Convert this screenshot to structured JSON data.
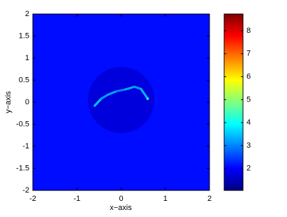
{
  "chart_data": {
    "type": "heatmap",
    "x_label": "x−axis",
    "y_label": "y−axis",
    "xlim": [
      -2,
      2
    ],
    "ylim": [
      -2,
      2
    ],
    "xticks": [
      -2,
      -1,
      0,
      1,
      2
    ],
    "yticks": [
      -2,
      -1.5,
      -1,
      -0.5,
      0,
      0.5,
      1,
      1.5,
      2
    ],
    "colormap": "jet",
    "clim": [
      1.05,
      8.73
    ],
    "cticks": [
      2,
      3,
      4,
      5,
      6,
      7,
      8
    ],
    "background_value": 2.1,
    "inner_region": {
      "center": [
        0,
        0.05
      ],
      "radius": 0.75,
      "value": 1.75
    },
    "curve": {
      "x": [
        -0.6,
        -0.45,
        -0.3,
        -0.1,
        0.1,
        0.3,
        0.45,
        0.6
      ],
      "y": [
        -0.08,
        0.08,
        0.17,
        0.25,
        0.29,
        0.35,
        0.3,
        0.08
      ],
      "values": [
        3.5,
        3.2,
        3.3,
        3.0,
        3.3,
        3.2,
        3.4,
        4.2
      ]
    }
  }
}
